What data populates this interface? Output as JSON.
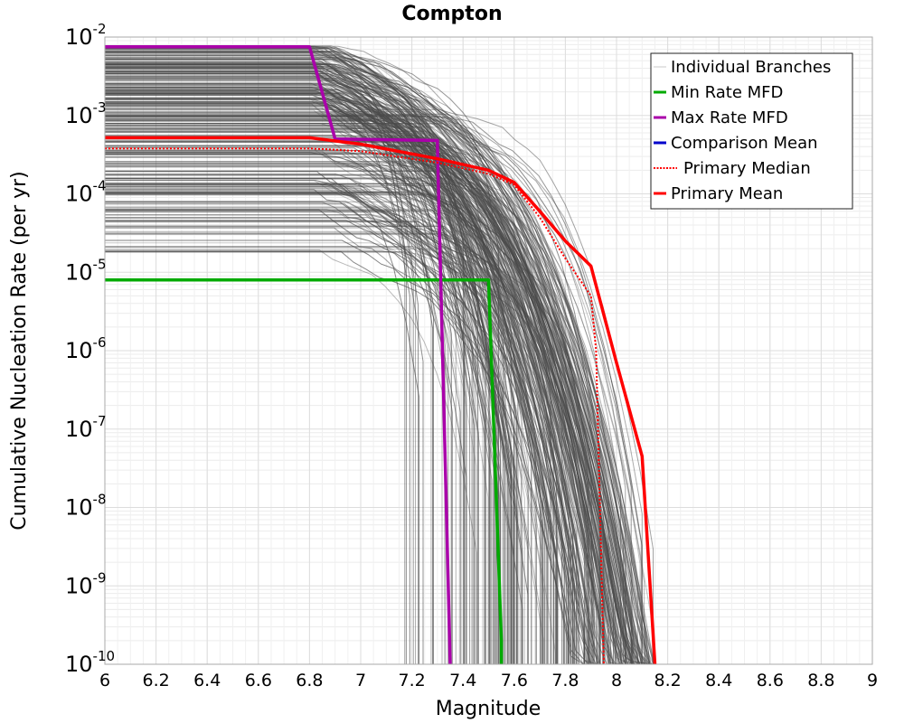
{
  "chart_data": {
    "type": "line",
    "title": "Compton",
    "xlabel": "Magnitude",
    "ylabel": "Cumulative Nucleation Rate (per yr)",
    "xlim": [
      6,
      9
    ],
    "ylim": [
      1e-10,
      0.01
    ],
    "yscale": "log",
    "grid": true,
    "legend_position": "top-right",
    "x_ticks": [
      "6",
      "6.2",
      "6.4",
      "6.6",
      "6.8",
      "7",
      "7.2",
      "7.4",
      "7.6",
      "7.8",
      "8",
      "8.2",
      "8.4",
      "8.6",
      "8.8",
      "9"
    ],
    "y_ticks": [
      {
        "base": "10",
        "exp": "-2"
      },
      {
        "base": "10",
        "exp": "-3"
      },
      {
        "base": "10",
        "exp": "-4"
      },
      {
        "base": "10",
        "exp": "-5"
      },
      {
        "base": "10",
        "exp": "-6"
      },
      {
        "base": "10",
        "exp": "-7"
      },
      {
        "base": "10",
        "exp": "-8"
      },
      {
        "base": "10",
        "exp": "-9"
      },
      {
        "base": "10",
        "exp": "-10"
      }
    ],
    "legend": [
      {
        "label": "Individual Branches",
        "color": "#c8c8c8",
        "style": "solid"
      },
      {
        "label": "Min Rate MFD",
        "color": "#00aa00",
        "style": "solid"
      },
      {
        "label": "Max Rate MFD",
        "color": "#aa00aa",
        "style": "solid"
      },
      {
        "label": "Comparison Mean",
        "color": "#0000cc",
        "style": "solid"
      },
      {
        "label": "Primary Median",
        "color": "#ff0000",
        "style": "dotted"
      },
      {
        "label": "Primary Mean",
        "color": "#ff0000",
        "style": "solid"
      }
    ],
    "series": [
      {
        "name": "Min Rate MFD",
        "color": "#00aa00",
        "x": [
          6.0,
          7.5,
          7.5,
          7.55,
          7.55
        ],
        "y": [
          8e-06,
          8e-06,
          7.5e-06,
          2e-10,
          1e-10
        ]
      },
      {
        "name": "Max Rate MFD",
        "color": "#aa00aa",
        "x": [
          6.0,
          6.8,
          6.9,
          7.3,
          7.3,
          7.35
        ],
        "y": [
          0.0075,
          0.0075,
          0.0005,
          0.00048,
          0.0004,
          1e-10
        ]
      },
      {
        "name": "Primary Median",
        "color": "#ff0000",
        "x": [
          6.0,
          6.8,
          7.0,
          7.3,
          7.5,
          7.6,
          7.7,
          7.8,
          7.9,
          7.92,
          7.95
        ],
        "y": [
          0.00038,
          0.00038,
          0.00035,
          0.00025,
          0.00018,
          0.00013,
          5e-05,
          1.5e-05,
          5e-06,
          1e-06,
          1e-10
        ]
      },
      {
        "name": "Primary Mean",
        "color": "#ff0000",
        "x": [
          6.0,
          6.8,
          7.0,
          7.3,
          7.5,
          7.6,
          7.7,
          7.8,
          7.9,
          8.0,
          8.1,
          8.15
        ],
        "y": [
          0.00052,
          0.00052,
          0.00043,
          0.00028,
          0.0002,
          0.00014,
          6e-05,
          2.5e-05,
          1.2e-05,
          7e-07,
          4.5e-08,
          1e-10
        ]
      }
    ]
  }
}
